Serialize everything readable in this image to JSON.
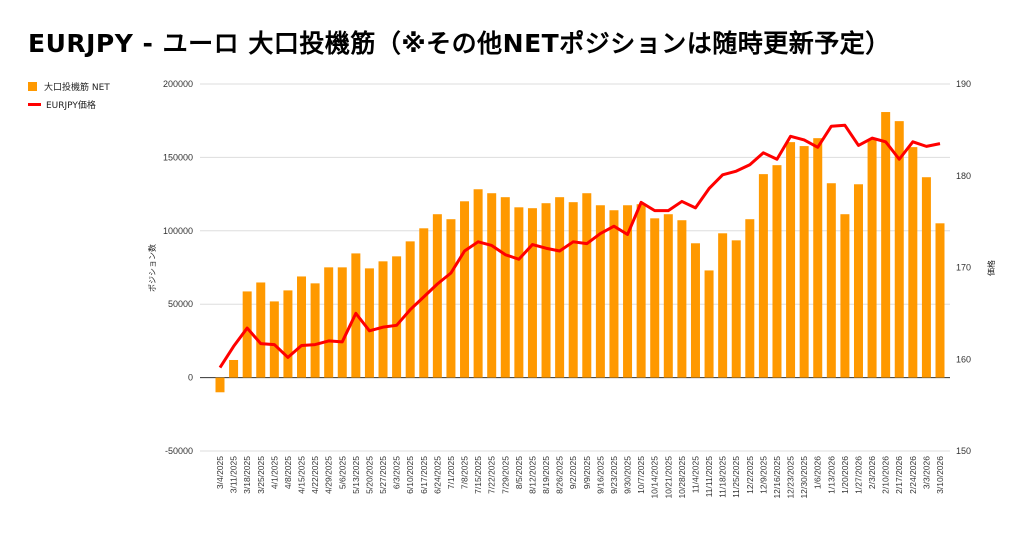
{
  "title": "EURJPY - ユーロ 大口投機筋（※その他NETポジションは随時更新予定）",
  "chart_data": {
    "type": "bar+line",
    "title": "EURJPY - ユーロ 大口投機筋（※その他NETポジションは随時更新予定）",
    "legend_position": "top-left",
    "ylabel_left": "ポジション数",
    "ylabel_right": "価格",
    "ylim_left": [
      -50000,
      200000
    ],
    "yticks_left": [
      -50000,
      0,
      50000,
      100000,
      150000,
      200000
    ],
    "ylim_right": [
      150,
      190
    ],
    "yticks_right": [
      150,
      160,
      170,
      180,
      190
    ],
    "grid": true,
    "colors": {
      "bar": "#ff9900",
      "line": "#ff0000"
    },
    "categories": [
      "3/4/2025",
      "3/11/2025",
      "3/18/2025",
      "3/25/2025",
      "4/1/2025",
      "4/8/2025",
      "4/15/2025",
      "4/22/2025",
      "4/29/2025",
      "5/6/2025",
      "5/13/2025",
      "5/20/2025",
      "5/27/2025",
      "6/3/2025",
      "6/10/2025",
      "6/17/2025",
      "6/24/2025",
      "7/1/2025",
      "7/8/2025",
      "7/15/2025",
      "7/22/2025",
      "7/29/2025",
      "8/5/2025",
      "8/12/2025",
      "8/19/2025",
      "8/26/2025",
      "9/2/2025",
      "9/9/2025",
      "9/16/2025",
      "9/23/2025",
      "9/30/2025",
      "10/7/2025",
      "10/14/2025",
      "10/21/2025",
      "10/28/2025",
      "11/4/2025",
      "11/11/2025",
      "11/18/2025",
      "11/25/2025",
      "12/2/2025",
      "12/9/2025",
      "12/16/2025",
      "12/23/2025",
      "12/30/2025",
      "1/6/2026",
      "1/13/2026",
      "1/20/2026",
      "1/27/2026",
      "2/3/2026",
      "2/10/2026",
      "2/17/2026",
      "2/24/2026",
      "3/3/2026",
      "3/10/2026"
    ],
    "series": [
      {
        "name": "大口投機筋  NET",
        "type": "bar",
        "axis": "left",
        "values": [
          -10000,
          12000,
          58700,
          64800,
          51900,
          59400,
          68900,
          64200,
          75100,
          75100,
          84600,
          74400,
          79200,
          82600,
          92800,
          101700,
          111300,
          107900,
          120100,
          128300,
          125600,
          122900,
          116000,
          115400,
          118800,
          122900,
          119500,
          125600,
          117400,
          114000,
          117400,
          118100,
          108500,
          111300,
          107200,
          91500,
          73000,
          98300,
          93500,
          107900,
          138600,
          144700,
          160400,
          157700,
          163100,
          132400,
          111300,
          131700,
          162400,
          180900,
          174700,
          157000,
          136500,
          105100
        ]
      },
      {
        "name": "EURJPY価格",
        "type": "line",
        "axis": "right",
        "values": [
          159.1,
          161.4,
          163.4,
          161.7,
          161.6,
          160.2,
          161.5,
          161.6,
          162.0,
          161.9,
          165.0,
          163.1,
          163.5,
          163.7,
          165.4,
          166.8,
          168.2,
          169.4,
          171.8,
          172.8,
          172.4,
          171.4,
          170.9,
          172.5,
          172.1,
          171.8,
          172.8,
          172.6,
          173.7,
          174.5,
          173.6,
          177.1,
          176.2,
          176.2,
          177.2,
          176.5,
          178.6,
          180.1,
          180.5,
          181.2,
          182.5,
          181.8,
          184.3,
          183.9,
          183.1,
          185.4,
          185.5,
          183.3,
          184.1,
          183.7,
          181.8,
          183.7,
          183.2,
          183.5
        ]
      }
    ]
  }
}
